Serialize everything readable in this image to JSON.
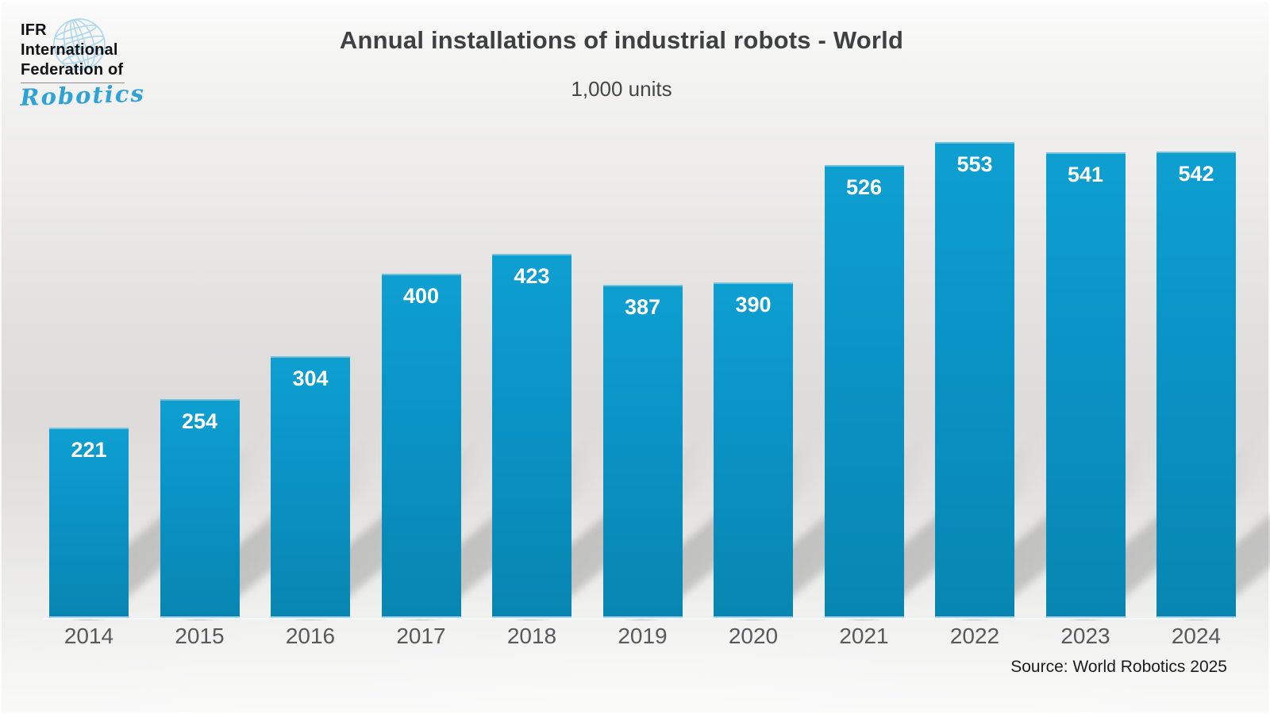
{
  "logo": {
    "line1": "IFR",
    "line2": "International",
    "line3": "Federation of",
    "script": "Robotics"
  },
  "header": {
    "title": "Annual installations of industrial robots - World",
    "subtitle": "1,000 units"
  },
  "source": "Source: World Robotics 2025",
  "colors": {
    "bar_top": "#0e9fd1",
    "bar_main": "#0a93c6",
    "bar_bottom": "#0886b1",
    "value_label": "#ffffff",
    "year_label": "#58595b",
    "title_text": "#3f4042",
    "logo_script_blue": "#2fa3d6",
    "globe_blue": "#aed7eb",
    "source_text": "#1c1c1e"
  },
  "chart_data": {
    "type": "bar",
    "title": "Annual installations of industrial robots - World",
    "unit_label": "1,000 units",
    "categories": [
      "2014",
      "2015",
      "2016",
      "2017",
      "2018",
      "2019",
      "2020",
      "2021",
      "2022",
      "2023",
      "2024"
    ],
    "values": [
      221,
      254,
      304,
      400,
      423,
      387,
      390,
      526,
      553,
      541,
      542
    ],
    "series_name": "Annual installations (1,000 units)",
    "ylim": [
      0,
      580
    ],
    "grid": false,
    "legend_position": "none",
    "value_labels": "inside-top",
    "source": "Source: World Robotics 2025"
  }
}
